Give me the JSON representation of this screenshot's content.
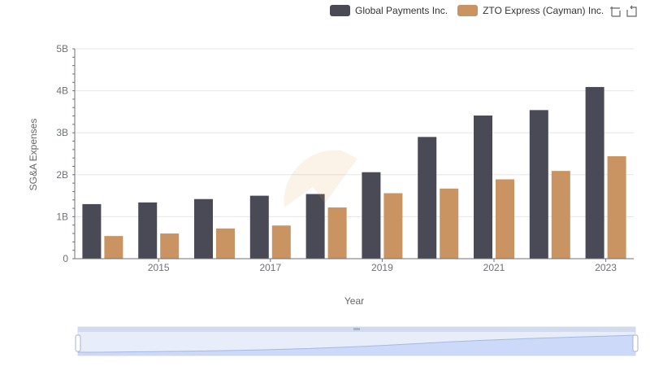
{
  "legend": {
    "items": [
      {
        "label": "Global Payments Inc.",
        "color": "#4a4a56"
      },
      {
        "label": "ZTO Express (Cayman) Inc.",
        "color": "#c99461"
      }
    ]
  },
  "toolbox": {
    "zoom_icon": "zoom-icon",
    "restore_icon": "restore-icon"
  },
  "chart_data": {
    "type": "bar",
    "title": "",
    "xlabel": "Year",
    "ylabel": "SG&A Expenses",
    "categories": [
      "2014",
      "2015",
      "2016",
      "2017",
      "2018",
      "2019",
      "2020",
      "2021",
      "2022",
      "2023"
    ],
    "x_tick_labels": [
      "2015",
      "2017",
      "2019",
      "2021",
      "2023"
    ],
    "y_tick_labels": [
      "0",
      "1B",
      "2B",
      "3B",
      "4B",
      "5B"
    ],
    "ylim": [
      0,
      5000000000
    ],
    "series": [
      {
        "name": "Global Payments Inc.",
        "color": "#4a4a56",
        "values": [
          1300000000,
          1340000000,
          1420000000,
          1500000000,
          1540000000,
          2060000000,
          2900000000,
          3410000000,
          3540000000,
          4090000000
        ]
      },
      {
        "name": "ZTO Express (Cayman) Inc.",
        "color": "#c99461",
        "values": [
          540000000,
          600000000,
          720000000,
          790000000,
          1220000000,
          1560000000,
          1670000000,
          1890000000,
          2090000000,
          2440000000
        ]
      }
    ],
    "grid": true,
    "legend_position": "top-right",
    "datazoom": {
      "range": [
        0,
        100
      ]
    }
  }
}
